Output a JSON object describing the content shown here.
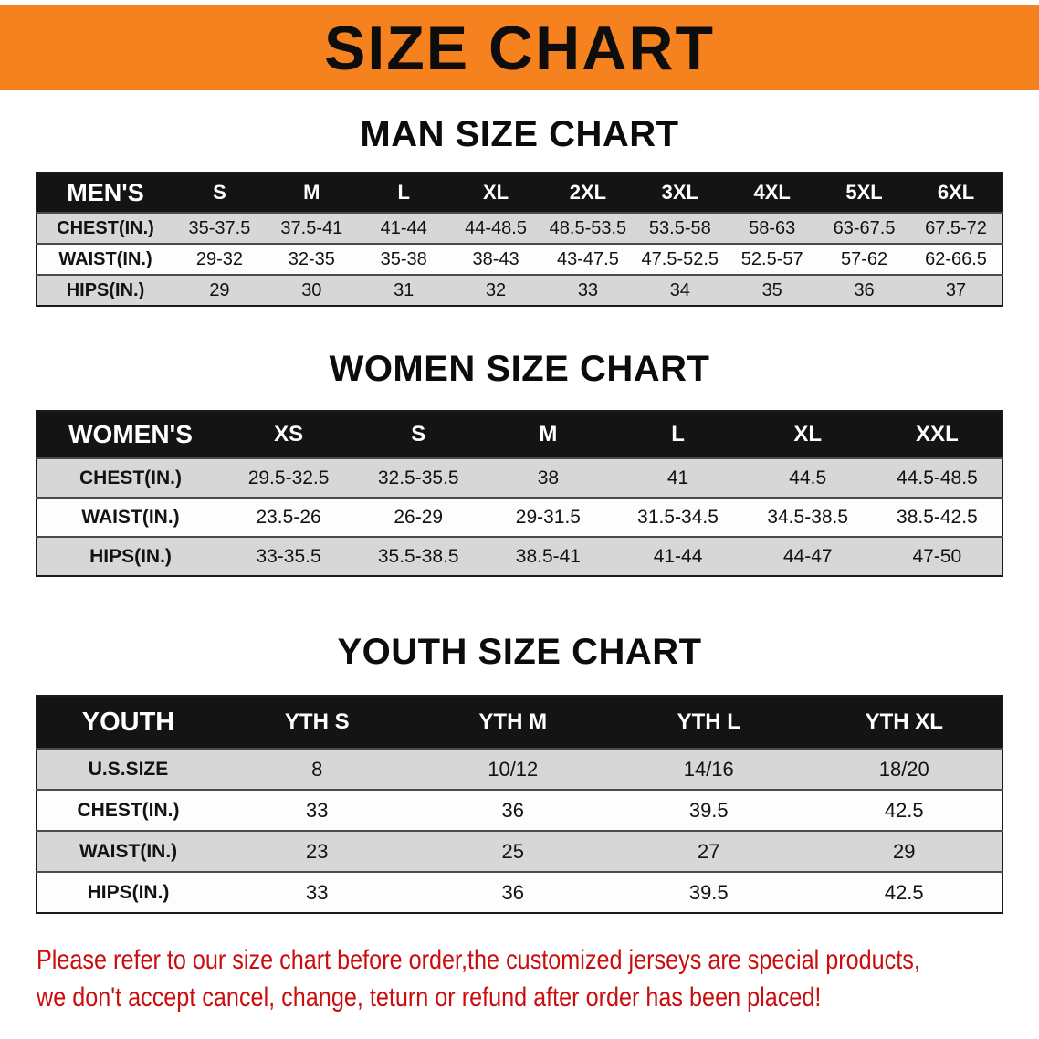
{
  "banner": {
    "title": "SIZE CHART"
  },
  "colors": {
    "banner_bg": "#f5821e",
    "title_text": "#0d0d0d",
    "header_band": "#141414",
    "row_shade": "#d7d7d7",
    "row_plain": "#fdfdfd",
    "footer_text": "#cc0d0d"
  },
  "men": {
    "heading": "MAN SIZE CHART",
    "header": [
      "MEN'S",
      "S",
      "M",
      "L",
      "XL",
      "2XL",
      "3XL",
      "4XL",
      "5XL",
      "6XL"
    ],
    "rows": [
      {
        "label": "CHEST(IN.)",
        "values": [
          "35-37.5",
          "37.5-41",
          "41-44",
          "44-48.5",
          "48.5-53.5",
          "53.5-58",
          "58-63",
          "63-67.5",
          "67.5-72"
        ]
      },
      {
        "label": "WAIST(IN.)",
        "values": [
          "29-32",
          "32-35",
          "35-38",
          "38-43",
          "43-47.5",
          "47.5-52.5",
          "52.5-57",
          "57-62",
          "62-66.5"
        ]
      },
      {
        "label": "HIPS(IN.)",
        "values": [
          "29",
          "30",
          "31",
          "32",
          "33",
          "34",
          "35",
          "36",
          "37"
        ]
      }
    ]
  },
  "women": {
    "heading": "WOMEN SIZE CHART",
    "header": [
      "WOMEN'S",
      "XS",
      "S",
      "M",
      "L",
      "XL",
      "XXL"
    ],
    "rows": [
      {
        "label": "CHEST(IN.)",
        "values": [
          "29.5-32.5",
          "32.5-35.5",
          "38",
          "41",
          "44.5",
          "44.5-48.5"
        ]
      },
      {
        "label": "WAIST(IN.)",
        "values": [
          "23.5-26",
          "26-29",
          "29-31.5",
          "31.5-34.5",
          "34.5-38.5",
          "38.5-42.5"
        ]
      },
      {
        "label": "HIPS(IN.)",
        "values": [
          "33-35.5",
          "35.5-38.5",
          "38.5-41",
          "41-44",
          "44-47",
          "47-50"
        ]
      }
    ]
  },
  "youth": {
    "heading": "YOUTH SIZE CHART",
    "header": [
      "YOUTH",
      "YTH S",
      "YTH M",
      "YTH L",
      "YTH XL"
    ],
    "rows": [
      {
        "label": "U.S.SIZE",
        "values": [
          "8",
          "10/12",
          "14/16",
          "18/20"
        ]
      },
      {
        "label": "CHEST(IN.)",
        "values": [
          "33",
          "36",
          "39.5",
          "42.5"
        ]
      },
      {
        "label": "WAIST(IN.)",
        "values": [
          "23",
          "25",
          "27",
          "29"
        ]
      },
      {
        "label": "HIPS(IN.)",
        "values": [
          "33",
          "36",
          "39.5",
          "42.5"
        ]
      }
    ]
  },
  "footer": {
    "line1": "Please refer to our size chart before order,the customized jerseys are special products,",
    "line2": "we don't accept cancel, change, teturn or refund after order has been placed!"
  }
}
